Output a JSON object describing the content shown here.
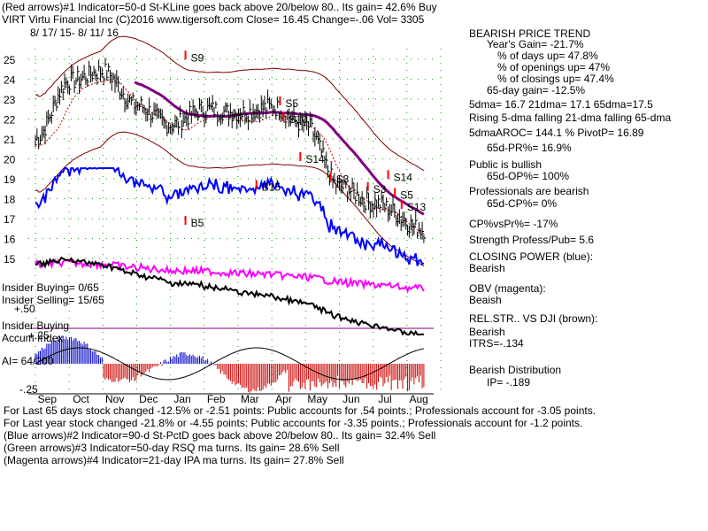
{
  "header": {
    "line1": "(Red arrows)#1 Indicator=50-d St-KLine goes back above 20/below 80.. Its gain= 42.6% Buy",
    "line2": "VIRT   Virtu Financial Inc   (C)2016 www.tigersoft.com      Close=  16.45  Change=-.06 Vol= 3305",
    "date_range": "8/ 17/ 15-  8/ 11/ 16"
  },
  "left_labels": {
    "insider_buying_count": "Insider Buying= 0/65",
    "insider_selling_count": "Insider Selling= 15/65",
    "insider_buying": "Insider Buying",
    "accum_index": "Accum Index",
    "ai": "AI= 64/200",
    "plus50": "+.50",
    "plus25": "+.25",
    "minus25": "-.25"
  },
  "sidebar": [
    {
      "text": "BEARISH PRICE TREND",
      "indent": 0
    },
    {
      "text": "Year's Gain= -21.7%",
      "indent": 20
    },
    {
      "text": "% of days up= 47.8%",
      "indent": 32
    },
    {
      "text": "% of openings up= 47%",
      "indent": 32
    },
    {
      "text": "% of closings up= 47.4%",
      "indent": 32
    },
    {
      "text": "65-day gain= -12.5%",
      "indent": 20
    },
    {
      "text": "5dma= 16.7  21dma= 17.1  65dma=17.5",
      "indent": 0
    },
    {
      "text": "Rising 5-dma falling 21-dma falling 65-dma",
      "indent": 0
    },
    {
      "text": "5dmaAROC= 144.1 %  PivotP= 16.89",
      "indent": 0
    },
    {
      "text": "65d-PR%= 16.9%",
      "indent": 20
    },
    {
      "text": "Public is bullish",
      "indent": 0
    },
    {
      "text": "65d-OP%= 100%",
      "indent": 20
    },
    {
      "text": "Professionals are bearish",
      "indent": 0
    },
    {
      "text": "65d-CP%= 0%",
      "indent": 20
    },
    {
      "text": "CP%vsPr%= -17%",
      "indent": 0
    },
    {
      "text": "Strength Profess/Pub= 5.6",
      "indent": 0
    },
    {
      "text": "CLOSING POWER (blue):",
      "indent": 0
    },
    {
      "text": "Bearish",
      "indent": 0
    },
    {
      "text": "OBV (magenta):",
      "indent": 0
    },
    {
      "text": "Beaish",
      "indent": 0
    },
    {
      "text": "REL.STR.. VS DJI (brown):",
      "indent": 0
    },
    {
      "text": "Bearish",
      "indent": 0
    },
    {
      "text": "ITRS=-.134",
      "indent": 0
    },
    {
      "text": "Bearish Distribution",
      "indent": 0
    },
    {
      "text": "IP= -.189",
      "indent": 20
    }
  ],
  "footer": [
    "For Last 65 days stock changed -12.5% or -2.51 points:  Public accounts for  .54 points.;  Professionals account for -3.05 points.",
    "For Last year stock changed -21.8% or -4.55 points:  Public accounts for -3.35 points.;  Professionals account for -1.2 points.",
    "(Blue arrows)#2 Indicator=90-d St-PctD goes back above 20/below 80.. Its gain= 32.4% Sell",
    "(Green arrows)#3 Indicator=50-day RSQ ma turns. Its gain= 28.6% Sell",
    "(Magenta arrows)#4 Indicator=21-day IPA ma turns. Its gain= 27.8% Sell"
  ],
  "colors": {
    "price": "#000000",
    "closing_power": "#0000ff",
    "obv": "#ff00ff",
    "rel_str": "#000000",
    "ma65": "#800080",
    "bands": "#800000",
    "ma21": "#cc0000",
    "accum_pos": "#0000cc",
    "accum_neg": "#cc0000",
    "grid": "#00aa00",
    "red_arrow": "#ff0000",
    "blue_arrow": "#0000ff"
  },
  "chart_data": {
    "type": "line",
    "ylim": [
      14.5,
      26
    ],
    "y_ticks": [
      15,
      16,
      17,
      18,
      19,
      20,
      21,
      22,
      23,
      24,
      25
    ],
    "x_tick_labels": [
      "Sep",
      "Oct",
      "Nov",
      "Dec",
      "Jan",
      "Feb",
      "Mar",
      "Apr",
      "May",
      "Jun",
      "Jul",
      "Aug"
    ],
    "series": [
      {
        "key": "price",
        "x": [
          0,
          1,
          2,
          3,
          4,
          5,
          6,
          7,
          8,
          9,
          10,
          11.5
        ],
        "values": [
          21,
          23.9,
          24.4,
          22.7,
          21.7,
          22.5,
          22.3,
          22.6,
          21.7,
          18.6,
          17.8,
          16.45
        ]
      }
    ],
    "signals": [
      {
        "label": "S9",
        "x": 4.6,
        "y": 24.9
      },
      {
        "label": "S5",
        "x": 7.4,
        "y": 22.6
      },
      {
        "label": "S10",
        "x": 7.5,
        "y": 21.8
      },
      {
        "label": "S14",
        "x": 8.0,
        "y": 19.8
      },
      {
        "label": "B15",
        "x": 6.7,
        "y": 18.4
      },
      {
        "label": "B5",
        "x": 4.6,
        "y": 16.6
      },
      {
        "label": "S3",
        "x": 8.9,
        "y": 18.8
      },
      {
        "label": "S3",
        "x": 10.0,
        "y": 18.3
      },
      {
        "label": "S14",
        "x": 10.6,
        "y": 18.9
      },
      {
        "label": "S5",
        "x": 10.8,
        "y": 18.0
      },
      {
        "label": "S13",
        "x": 11.0,
        "y": 17.4
      }
    ]
  }
}
